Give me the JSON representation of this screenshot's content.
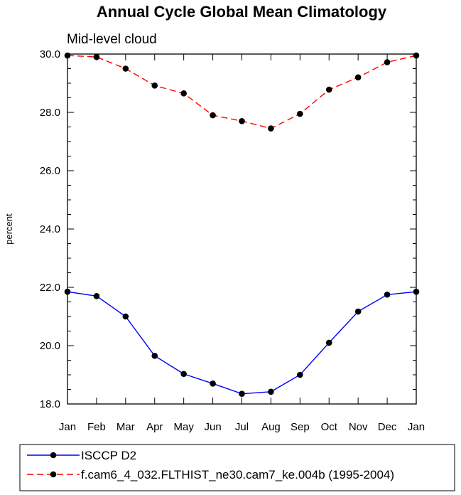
{
  "chart_data": {
    "type": "line",
    "title": "Annual Cycle Global Mean Climatology",
    "subtitle": "Mid-level cloud",
    "xlabel": "",
    "ylabel": "percent",
    "categories": [
      "Jan",
      "Feb",
      "Mar",
      "Apr",
      "May",
      "Jun",
      "Jul",
      "Aug",
      "Sep",
      "Oct",
      "Nov",
      "Dec",
      "Jan"
    ],
    "ylim": [
      18.0,
      30.0
    ],
    "yticks": [
      "18.0",
      "20.0",
      "22.0",
      "24.0",
      "26.0",
      "28.0",
      "30.0"
    ],
    "grid": false,
    "legend_position": "bottom",
    "series": [
      {
        "name": "ISCCP D2",
        "color": "#0000ff",
        "line_style": "solid",
        "marker": "filled-circle",
        "values": [
          21.85,
          21.7,
          21.0,
          19.65,
          19.03,
          18.7,
          18.35,
          18.42,
          19.0,
          20.1,
          21.17,
          21.75,
          21.85
        ]
      },
      {
        "name": "f.cam6_4_032.FLTHIST_ne30.cam7_ke.004b (1995-2004)",
        "color": "#ff0000",
        "line_style": "dashed",
        "marker": "filled-circle",
        "values": [
          29.95,
          29.9,
          29.5,
          28.92,
          28.65,
          27.9,
          27.7,
          27.45,
          27.95,
          28.78,
          29.2,
          29.72,
          29.95
        ]
      }
    ]
  }
}
